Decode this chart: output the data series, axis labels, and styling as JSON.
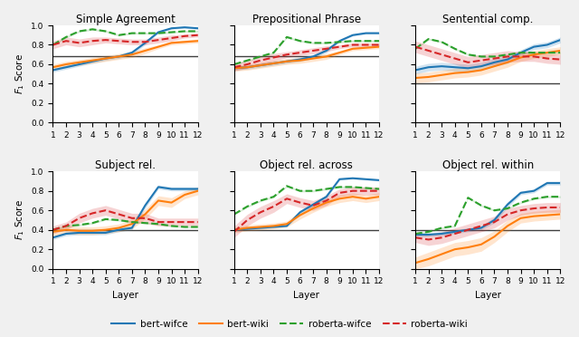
{
  "layers": [
    1,
    2,
    3,
    4,
    5,
    6,
    7,
    8,
    9,
    10,
    11,
    12
  ],
  "titles": [
    "Simple Agreement",
    "Prepositional Phrase",
    "Sentential comp.",
    "Subject rel.",
    "Object rel. across",
    "Object rel. within"
  ],
  "hlines": [
    0.68,
    0.68,
    0.4,
    0.4,
    0.4,
    0.4
  ],
  "series": {
    "bert-wifce": {
      "color": "#1f77b4",
      "linestyle": "-",
      "linewidth": 1.5,
      "data": [
        [
          0.54,
          0.57,
          0.6,
          0.63,
          0.66,
          0.68,
          0.72,
          0.82,
          0.93,
          0.97,
          0.98,
          0.97
        ],
        [
          0.56,
          0.57,
          0.59,
          0.61,
          0.63,
          0.65,
          0.68,
          0.74,
          0.84,
          0.9,
          0.92,
          0.92
        ],
        [
          0.54,
          0.57,
          0.58,
          0.57,
          0.56,
          0.58,
          0.62,
          0.65,
          0.72,
          0.78,
          0.8,
          0.85
        ],
        [
          0.32,
          0.36,
          0.37,
          0.37,
          0.37,
          0.4,
          0.42,
          0.65,
          0.84,
          0.82,
          0.82,
          0.82
        ],
        [
          0.4,
          0.41,
          0.42,
          0.43,
          0.44,
          0.58,
          0.66,
          0.74,
          0.92,
          0.93,
          0.92,
          0.91
        ],
        [
          0.35,
          0.35,
          0.36,
          0.38,
          0.4,
          0.42,
          0.5,
          0.66,
          0.78,
          0.8,
          0.88,
          0.88
        ]
      ],
      "std": [
        [
          0.02,
          0.02,
          0.02,
          0.02,
          0.02,
          0.02,
          0.02,
          0.02,
          0.01,
          0.01,
          0.01,
          0.01
        ],
        [
          0.02,
          0.02,
          0.02,
          0.02,
          0.02,
          0.02,
          0.02,
          0.02,
          0.01,
          0.01,
          0.01,
          0.01
        ],
        [
          0.04,
          0.04,
          0.04,
          0.04,
          0.04,
          0.04,
          0.04,
          0.04,
          0.03,
          0.03,
          0.03,
          0.03
        ],
        [
          0.02,
          0.02,
          0.02,
          0.02,
          0.02,
          0.02,
          0.02,
          0.03,
          0.02,
          0.02,
          0.02,
          0.02
        ],
        [
          0.01,
          0.01,
          0.01,
          0.01,
          0.01,
          0.02,
          0.02,
          0.02,
          0.01,
          0.01,
          0.01,
          0.01
        ],
        [
          0.02,
          0.02,
          0.02,
          0.02,
          0.02,
          0.02,
          0.03,
          0.03,
          0.02,
          0.02,
          0.02,
          0.02
        ]
      ]
    },
    "bert-wiki": {
      "color": "#ff7f0e",
      "linestyle": "-",
      "linewidth": 1.5,
      "data": [
        [
          0.57,
          0.6,
          0.62,
          0.64,
          0.66,
          0.68,
          0.7,
          0.74,
          0.78,
          0.82,
          0.83,
          0.84
        ],
        [
          0.56,
          0.57,
          0.59,
          0.61,
          0.63,
          0.64,
          0.66,
          0.68,
          0.72,
          0.76,
          0.77,
          0.78
        ],
        [
          0.46,
          0.47,
          0.49,
          0.51,
          0.52,
          0.54,
          0.58,
          0.62,
          0.67,
          0.7,
          0.72,
          0.74
        ],
        [
          0.38,
          0.4,
          0.39,
          0.39,
          0.4,
          0.42,
          0.46,
          0.56,
          0.7,
          0.68,
          0.76,
          0.8
        ],
        [
          0.4,
          0.42,
          0.43,
          0.44,
          0.46,
          0.55,
          0.62,
          0.68,
          0.72,
          0.74,
          0.72,
          0.74
        ],
        [
          0.06,
          0.1,
          0.15,
          0.2,
          0.22,
          0.25,
          0.33,
          0.44,
          0.52,
          0.54,
          0.55,
          0.56
        ]
      ],
      "std": [
        [
          0.03,
          0.03,
          0.03,
          0.03,
          0.03,
          0.03,
          0.03,
          0.03,
          0.02,
          0.02,
          0.02,
          0.02
        ],
        [
          0.03,
          0.03,
          0.03,
          0.03,
          0.03,
          0.03,
          0.03,
          0.03,
          0.02,
          0.02,
          0.02,
          0.02
        ],
        [
          0.05,
          0.05,
          0.05,
          0.05,
          0.05,
          0.05,
          0.05,
          0.05,
          0.04,
          0.04,
          0.04,
          0.04
        ],
        [
          0.04,
          0.04,
          0.04,
          0.04,
          0.04,
          0.04,
          0.05,
          0.05,
          0.05,
          0.05,
          0.04,
          0.04
        ],
        [
          0.03,
          0.03,
          0.03,
          0.03,
          0.03,
          0.04,
          0.04,
          0.04,
          0.04,
          0.04,
          0.04,
          0.04
        ],
        [
          0.06,
          0.07,
          0.07,
          0.07,
          0.07,
          0.07,
          0.06,
          0.06,
          0.05,
          0.05,
          0.05,
          0.05
        ]
      ]
    },
    "roberta-wifce": {
      "color": "#2ca02c",
      "linestyle": "--",
      "linewidth": 1.5,
      "data": [
        [
          0.8,
          0.88,
          0.94,
          0.96,
          0.94,
          0.9,
          0.92,
          0.92,
          0.92,
          0.93,
          0.94,
          0.94
        ],
        [
          0.6,
          0.64,
          0.68,
          0.72,
          0.88,
          0.84,
          0.82,
          0.82,
          0.83,
          0.84,
          0.84,
          0.84
        ],
        [
          0.76,
          0.86,
          0.83,
          0.76,
          0.7,
          0.68,
          0.68,
          0.7,
          0.72,
          0.72,
          0.72,
          0.72
        ],
        [
          0.4,
          0.44,
          0.45,
          0.47,
          0.51,
          0.5,
          0.48,
          0.47,
          0.46,
          0.44,
          0.43,
          0.43
        ],
        [
          0.56,
          0.64,
          0.7,
          0.74,
          0.85,
          0.8,
          0.8,
          0.82,
          0.84,
          0.84,
          0.83,
          0.82
        ],
        [
          0.36,
          0.38,
          0.42,
          0.44,
          0.73,
          0.65,
          0.6,
          0.62,
          0.68,
          0.72,
          0.74,
          0.74
        ]
      ],
      "std": [
        [
          0.01,
          0.01,
          0.01,
          0.01,
          0.01,
          0.01,
          0.01,
          0.01,
          0.01,
          0.01,
          0.01,
          0.01
        ],
        [
          0.01,
          0.01,
          0.01,
          0.01,
          0.01,
          0.01,
          0.01,
          0.01,
          0.01,
          0.01,
          0.01,
          0.01
        ],
        [
          0.01,
          0.01,
          0.01,
          0.01,
          0.01,
          0.01,
          0.01,
          0.01,
          0.01,
          0.01,
          0.01,
          0.01
        ],
        [
          0.01,
          0.01,
          0.01,
          0.01,
          0.01,
          0.01,
          0.01,
          0.01,
          0.01,
          0.01,
          0.01,
          0.01
        ],
        [
          0.01,
          0.01,
          0.01,
          0.01,
          0.01,
          0.01,
          0.01,
          0.01,
          0.01,
          0.01,
          0.01,
          0.01
        ],
        [
          0.01,
          0.01,
          0.01,
          0.01,
          0.01,
          0.01,
          0.01,
          0.01,
          0.01,
          0.01,
          0.01,
          0.01
        ]
      ]
    },
    "roberta-wiki": {
      "color": "#d62728",
      "linestyle": "--",
      "linewidth": 1.5,
      "data": [
        [
          0.8,
          0.84,
          0.82,
          0.84,
          0.85,
          0.84,
          0.83,
          0.83,
          0.85,
          0.87,
          0.89,
          0.9
        ],
        [
          0.57,
          0.6,
          0.64,
          0.67,
          0.7,
          0.72,
          0.74,
          0.76,
          0.78,
          0.8,
          0.8,
          0.8
        ],
        [
          0.78,
          0.74,
          0.7,
          0.66,
          0.62,
          0.64,
          0.66,
          0.68,
          0.68,
          0.68,
          0.66,
          0.65
        ],
        [
          0.4,
          0.44,
          0.52,
          0.57,
          0.6,
          0.56,
          0.52,
          0.52,
          0.48,
          0.48,
          0.48,
          0.48
        ],
        [
          0.38,
          0.5,
          0.58,
          0.64,
          0.72,
          0.68,
          0.65,
          0.7,
          0.78,
          0.8,
          0.8,
          0.8
        ],
        [
          0.32,
          0.3,
          0.32,
          0.36,
          0.4,
          0.44,
          0.48,
          0.56,
          0.6,
          0.62,
          0.63,
          0.63
        ]
      ],
      "std": [
        [
          0.04,
          0.04,
          0.04,
          0.04,
          0.03,
          0.03,
          0.03,
          0.03,
          0.03,
          0.03,
          0.02,
          0.02
        ],
        [
          0.04,
          0.04,
          0.04,
          0.04,
          0.03,
          0.03,
          0.03,
          0.03,
          0.02,
          0.02,
          0.02,
          0.02
        ],
        [
          0.06,
          0.06,
          0.06,
          0.06,
          0.06,
          0.06,
          0.06,
          0.06,
          0.05,
          0.05,
          0.05,
          0.05
        ],
        [
          0.04,
          0.04,
          0.05,
          0.05,
          0.05,
          0.05,
          0.05,
          0.05,
          0.04,
          0.04,
          0.04,
          0.04
        ],
        [
          0.06,
          0.06,
          0.06,
          0.06,
          0.05,
          0.05,
          0.05,
          0.05,
          0.04,
          0.04,
          0.04,
          0.04
        ],
        [
          0.05,
          0.06,
          0.06,
          0.06,
          0.06,
          0.06,
          0.06,
          0.06,
          0.05,
          0.05,
          0.05,
          0.05
        ]
      ]
    }
  },
  "legend_labels": [
    "bert-wifce",
    "bert-wiki",
    "roberta-wifce",
    "roberta-wiki"
  ],
  "ylabel": "$F_1$ Score",
  "xlabel": "Layer",
  "ylim": [
    0.0,
    1.0
  ],
  "yticks": [
    0.0,
    0.2,
    0.4,
    0.6,
    0.8,
    1.0
  ],
  "fig_facecolor": "#f0f0f0",
  "axes_facecolor": "#ffffff"
}
